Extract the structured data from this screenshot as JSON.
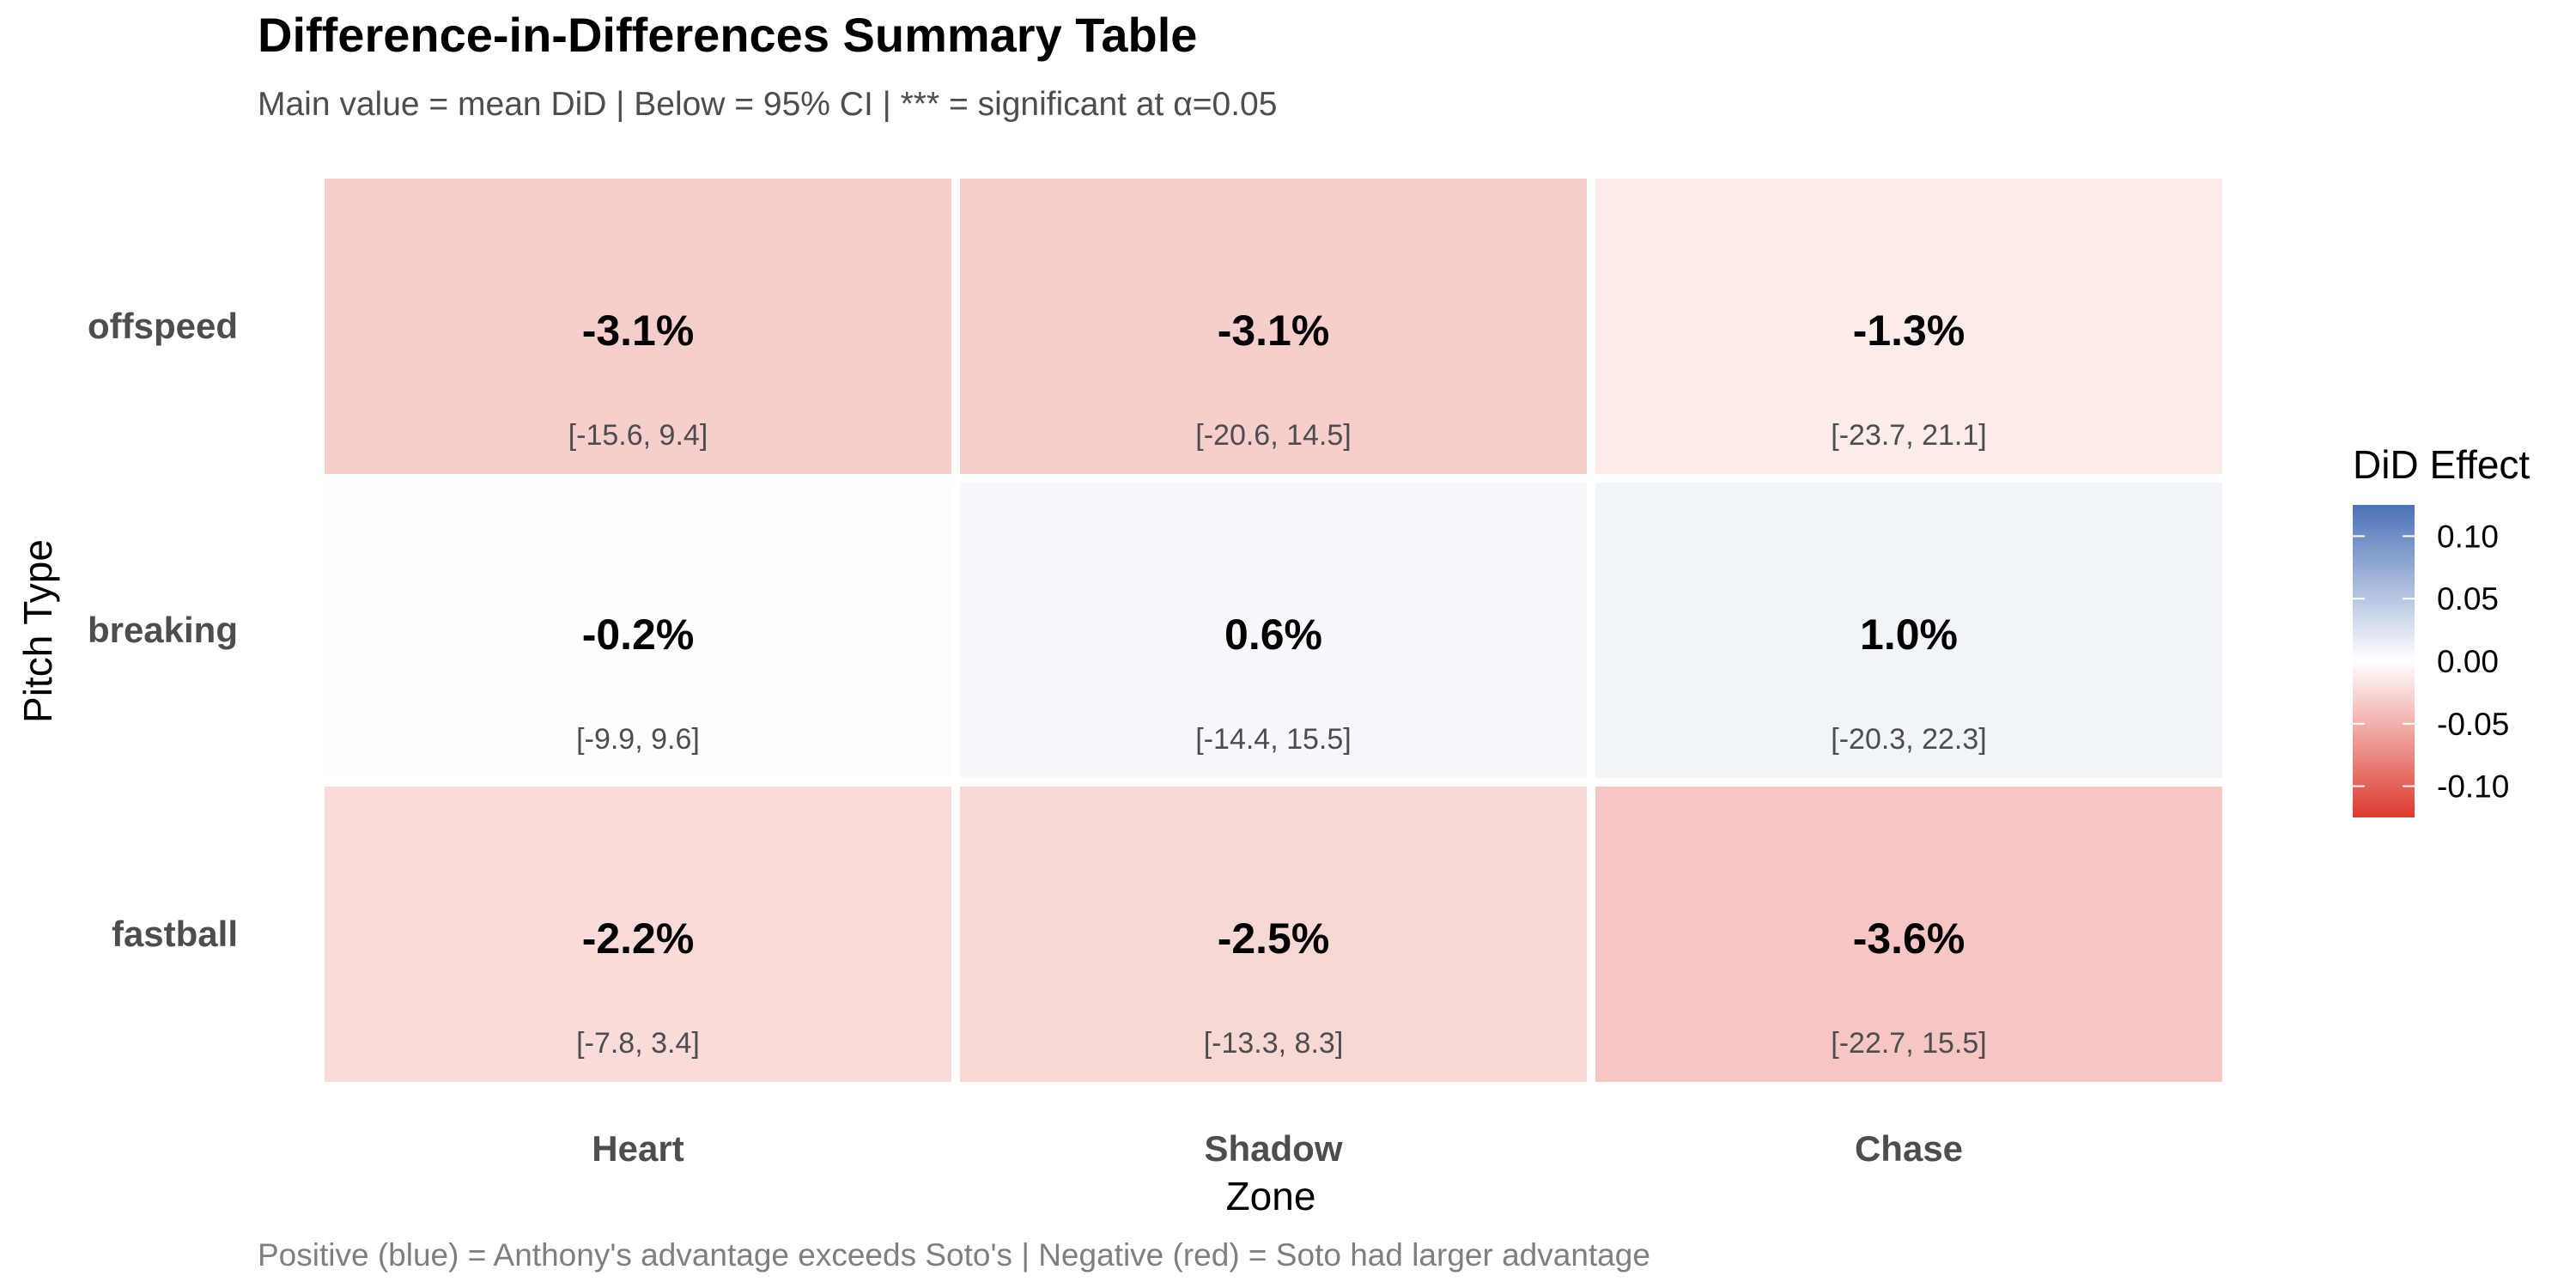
{
  "chart_data": {
    "type": "heatmap",
    "title": "Difference-in-Differences Summary Table",
    "subtitle": "Main value = mean DiD | Below = 95% CI | *** = significant at α=0.05",
    "caption": "Positive (blue) = Anthony's advantage exceeds Soto's | Negative (red) = Soto had larger advantage",
    "xlabel": "Zone",
    "ylabel": "Pitch Type",
    "x_categories": [
      "Heart",
      "Shadow",
      "Chase"
    ],
    "y_categories": [
      "offspeed",
      "breaking",
      "fastball"
    ],
    "cells": [
      {
        "row": "offspeed",
        "col": "Heart",
        "value": -0.031,
        "label": "-3.1%",
        "ci": "[-15.6, 9.4]"
      },
      {
        "row": "offspeed",
        "col": "Shadow",
        "value": -0.031,
        "label": "-3.1%",
        "ci": "[-20.6, 14.5]"
      },
      {
        "row": "offspeed",
        "col": "Chase",
        "value": -0.013,
        "label": "-1.3%",
        "ci": "[-23.7, 21.1]"
      },
      {
        "row": "breaking",
        "col": "Heart",
        "value": -0.002,
        "label": "-0.2%",
        "ci": "[-9.9, 9.6]"
      },
      {
        "row": "breaking",
        "col": "Shadow",
        "value": 0.006,
        "label": "0.6%",
        "ci": "[-14.4, 15.5]"
      },
      {
        "row": "breaking",
        "col": "Chase",
        "value": 0.01,
        "label": "1.0%",
        "ci": "[-20.3, 22.3]"
      },
      {
        "row": "fastball",
        "col": "Heart",
        "value": -0.022,
        "label": "-2.2%",
        "ci": "[-7.8, 3.4]"
      },
      {
        "row": "fastball",
        "col": "Shadow",
        "value": -0.025,
        "label": "-2.5%",
        "ci": "[-13.3, 8.3]"
      },
      {
        "row": "fastball",
        "col": "Chase",
        "value": -0.036,
        "label": "-3.6%",
        "ci": "[-22.7, 15.5]"
      }
    ],
    "legend": {
      "title": "DiD Effect",
      "ticks": [
        0.1,
        0.05,
        0.0,
        -0.05,
        -0.1
      ],
      "tick_labels": [
        "0.10",
        "0.05",
        "0.00",
        "-0.05",
        "-0.10"
      ],
      "range": [
        -0.125,
        0.125
      ],
      "color_low": "#DC3A2E",
      "color_mid": "#FFFFFF",
      "color_high": "#4A72B6"
    },
    "text_colors": {
      "title": "#000000",
      "subtitle": "#4D4D4D",
      "axis_tick": "#4D4D4D",
      "ci": "#4D4D4D",
      "caption": "#7F7F7F"
    }
  }
}
